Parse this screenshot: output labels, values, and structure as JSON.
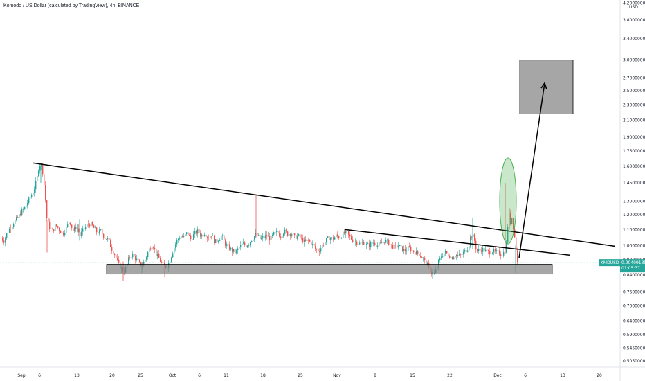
{
  "chart_data": {
    "type": "candlestick",
    "title": "Komodo / US Dollar (calculated by TradingView), 4h, BINANCE",
    "currency": "USD",
    "symbol": "KMDUSD",
    "last_price": "0.90409135",
    "countdown": "01:05:37",
    "y_scale": "log",
    "ylim": [
      0.487,
      4.28
    ],
    "y_ticks": [
      "0.50500000",
      "0.54500000",
      "0.59000000",
      "0.64000000",
      "0.70000000",
      "0.76000000",
      "0.84000000",
      "0.92000000",
      "1.00000000",
      "1.10000000",
      "1.20000000",
      "1.30000000",
      "1.45000000",
      "1.60000000",
      "1.75000000",
      "1.90000000",
      "2.10000000",
      "2.30000000",
      "2.50000000",
      "2.70000000",
      "3.00000000",
      "3.40000000",
      "3.80000000",
      "4.20000000"
    ],
    "x_ticks": [
      "Sep",
      "6",
      "13",
      "20",
      "25",
      "Oct",
      "6",
      "11",
      "18",
      "25",
      "Nov",
      "8",
      "15",
      "22",
      "Dec",
      "6",
      "13",
      "20"
    ],
    "grid": false,
    "colors": {
      "up": "#26a69a",
      "down": "#ef5350",
      "trendline": "#000000",
      "zone": "#808080",
      "highlight": "#4caf50",
      "price_tag": "#26a69a"
    },
    "price_path": [
      [
        0,
        1.05
      ],
      [
        5,
        1.03
      ],
      [
        10,
        1.08
      ],
      [
        15,
        1.12
      ],
      [
        20,
        1.15
      ],
      [
        25,
        1.18
      ],
      [
        30,
        1.22
      ],
      [
        35,
        1.25
      ],
      [
        40,
        1.3
      ],
      [
        45,
        1.35
      ],
      [
        50,
        1.42
      ],
      [
        53,
        1.5
      ],
      [
        55,
        1.58
      ],
      [
        58,
        1.63
      ],
      [
        61,
        1.55
      ],
      [
        64,
        1.38
      ],
      [
        67,
        1.18
      ],
      [
        70,
        1.12
      ],
      [
        75,
        1.09
      ],
      [
        80,
        1.13
      ],
      [
        85,
        1.1
      ],
      [
        90,
        1.07
      ],
      [
        95,
        1.11
      ],
      [
        100,
        1.16
      ],
      [
        105,
        1.09
      ],
      [
        110,
        1.12
      ],
      [
        115,
        1.06
      ],
      [
        120,
        1.1
      ],
      [
        125,
        1.13
      ],
      [
        130,
        1.14
      ],
      [
        135,
        1.11
      ],
      [
        140,
        1.08
      ],
      [
        145,
        1.09
      ],
      [
        150,
        1.05
      ],
      [
        155,
        1.04
      ],
      [
        160,
        0.99
      ],
      [
        165,
        0.95
      ],
      [
        170,
        0.9
      ],
      [
        175,
        0.87
      ],
      [
        180,
        0.86
      ],
      [
        185,
        0.92
      ],
      [
        190,
        0.95
      ],
      [
        195,
        0.93
      ],
      [
        200,
        0.9
      ],
      [
        205,
        0.89
      ],
      [
        210,
        0.93
      ],
      [
        215,
        0.98
      ],
      [
        220,
        1.01
      ],
      [
        225,
        0.95
      ],
      [
        230,
        0.92
      ],
      [
        235,
        0.89
      ],
      [
        240,
        0.88
      ],
      [
        245,
        0.92
      ],
      [
        250,
        0.98
      ],
      [
        255,
        1.03
      ],
      [
        260,
        1.06
      ],
      [
        265,
        1.05
      ],
      [
        270,
        1.08
      ],
      [
        275,
        1.04
      ],
      [
        280,
        1.07
      ],
      [
        285,
        1.09
      ],
      [
        290,
        1.06
      ],
      [
        295,
        1.08
      ],
      [
        300,
        1.05
      ],
      [
        305,
        1.07
      ],
      [
        310,
        1.02
      ],
      [
        315,
        1.04
      ],
      [
        320,
        1.06
      ],
      [
        325,
        1.01
      ],
      [
        330,
        0.99
      ],
      [
        335,
        0.97
      ],
      [
        340,
        0.96
      ],
      [
        345,
        0.99
      ],
      [
        350,
        1.01
      ],
      [
        355,
        1.0
      ],
      [
        360,
        1.02
      ],
      [
        365,
        1.05
      ],
      [
        370,
        1.07
      ],
      [
        375,
        1.04
      ],
      [
        380,
        1.05
      ],
      [
        385,
        1.06
      ],
      [
        390,
        1.04
      ],
      [
        395,
        1.07
      ],
      [
        400,
        1.08
      ],
      [
        405,
        1.06
      ],
      [
        410,
        1.09
      ],
      [
        415,
        1.07
      ],
      [
        420,
        1.08
      ],
      [
        425,
        1.05
      ],
      [
        430,
        1.06
      ],
      [
        435,
        1.04
      ],
      [
        440,
        1.02
      ],
      [
        445,
        1.03
      ],
      [
        450,
        1.01
      ],
      [
        455,
        0.98
      ],
      [
        460,
        0.97
      ],
      [
        465,
        1.0
      ],
      [
        470,
        1.03
      ],
      [
        475,
        1.05
      ],
      [
        480,
        1.04
      ],
      [
        485,
        1.06
      ],
      [
        490,
        1.05
      ],
      [
        495,
        1.07
      ],
      [
        500,
        1.08
      ],
      [
        505,
        1.05
      ],
      [
        510,
        1.03
      ],
      [
        515,
        1.02
      ],
      [
        520,
        1.01
      ],
      [
        525,
        1.02
      ],
      [
        530,
        1.0
      ],
      [
        535,
        1.01
      ],
      [
        540,
        1.02
      ],
      [
        545,
        1.0
      ],
      [
        550,
        1.01
      ],
      [
        555,
        1.03
      ],
      [
        560,
        1.02
      ],
      [
        565,
        1.0
      ],
      [
        570,
        0.99
      ],
      [
        575,
        1.0
      ],
      [
        580,
        0.98
      ],
      [
        585,
        0.97
      ],
      [
        590,
        0.99
      ],
      [
        595,
        0.97
      ],
      [
        600,
        0.96
      ],
      [
        605,
        0.95
      ],
      [
        610,
        0.93
      ],
      [
        615,
        0.9
      ],
      [
        620,
        0.87
      ],
      [
        625,
        0.84
      ],
      [
        628,
        0.85
      ],
      [
        632,
        0.9
      ],
      [
        637,
        0.94
      ],
      [
        642,
        0.96
      ],
      [
        647,
        0.95
      ],
      [
        652,
        0.93
      ],
      [
        657,
        0.95
      ],
      [
        662,
        0.94
      ],
      [
        667,
        0.95
      ],
      [
        672,
        0.97
      ],
      [
        676,
        0.99
      ],
      [
        680,
        1.07
      ],
      [
        684,
        1.05
      ],
      [
        688,
        0.97
      ],
      [
        692,
        0.97
      ],
      [
        696,
        0.98
      ],
      [
        700,
        0.97
      ],
      [
        705,
        0.96
      ],
      [
        710,
        0.97
      ],
      [
        715,
        0.96
      ],
      [
        720,
        0.96
      ],
      [
        724,
        0.95
      ],
      [
        727,
        0.96
      ],
      [
        730,
        0.98
      ],
      [
        732,
        1.04
      ],
      [
        734,
        1.22
      ],
      [
        737,
        1.15
      ],
      [
        739,
        1.18
      ],
      [
        741,
        1.12
      ],
      [
        743,
        1.05
      ],
      [
        745,
        0.98
      ],
      [
        747,
        0.904
      ]
    ],
    "spikes": [
      [
        59,
        1.63,
        1.45
      ],
      [
        68,
        1.16,
        0.96
      ],
      [
        115,
        1.17,
        1.03
      ],
      [
        178,
        0.91,
        0.81
      ],
      [
        205,
        0.9,
        0.85
      ],
      [
        238,
        0.89,
        0.83
      ],
      [
        370,
        1.35,
        1.05
      ],
      [
        625,
        0.87,
        0.82
      ],
      [
        683,
        1.18,
        0.98
      ],
      [
        730,
        1.45,
        0.95
      ],
      [
        736,
        1.25,
        1.1
      ],
      [
        745,
        1.0,
        0.85
      ]
    ],
    "annotations": {
      "upper_trendline": [
        [
          48,
          1.63
        ],
        [
          889,
          0.996
        ]
      ],
      "lower_trendline": [
        [
          498,
          1.1
        ],
        [
          824,
          0.945
        ]
      ],
      "support_zone": {
        "x1": 154,
        "x2": 798,
        "y_top": 0.895,
        "y_bottom": 0.845
      },
      "target_box": {
        "x1": 751,
        "x2": 828,
        "y_top": 3.0,
        "y_bottom": 2.18
      },
      "arrow": [
        [
          750,
          0.93
        ],
        [
          787,
          2.62
        ]
      ],
      "highlight_ellipse": {
        "cx": 734,
        "cy": 1.28,
        "rx": 12,
        "ry_top": 1.68,
        "ry_bottom": 1.01
      }
    }
  }
}
